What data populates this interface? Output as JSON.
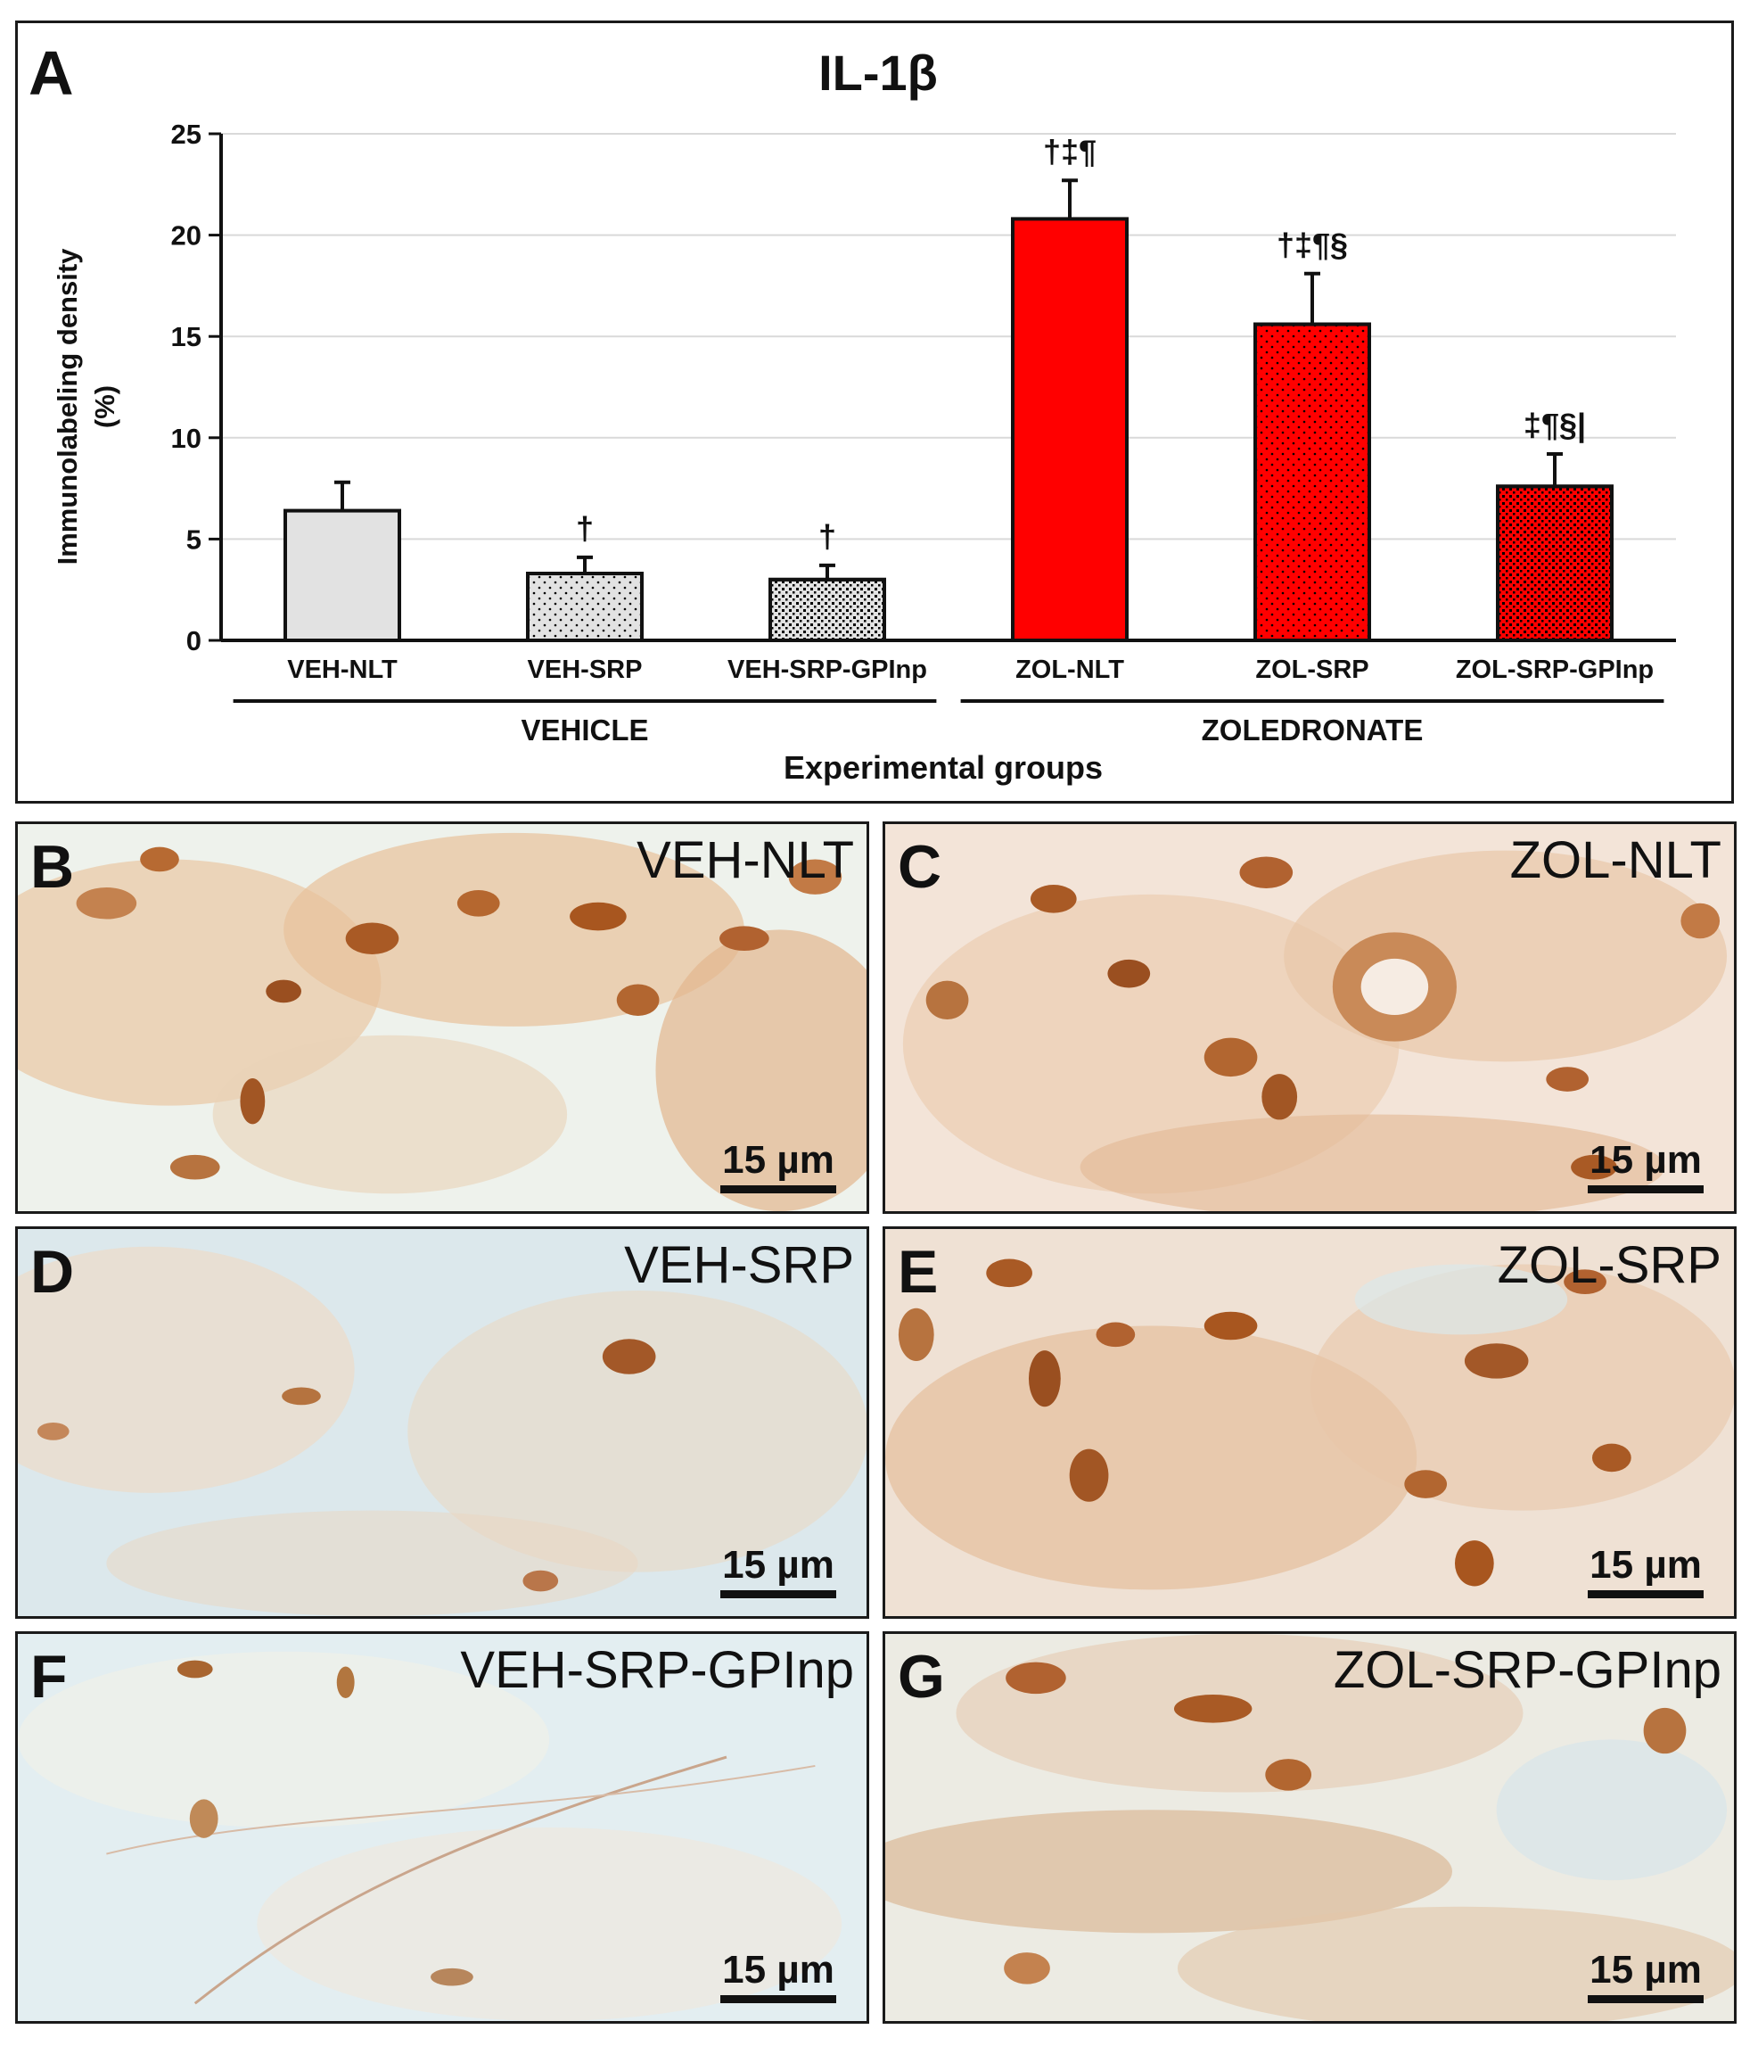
{
  "figure": {
    "panels": [
      {
        "letter": "B",
        "group": "VEH-NLT",
        "scale": "15 µm"
      },
      {
        "letter": "C",
        "group": "ZOL-NLT",
        "scale": "15 µm"
      },
      {
        "letter": "D",
        "group": "VEH-SRP",
        "scale": "15 µm"
      },
      {
        "letter": "E",
        "group": "ZOL-SRP",
        "scale": "15 µm"
      },
      {
        "letter": "F",
        "group": "VEH-SRP-GPInp",
        "scale": "15 µm"
      },
      {
        "letter": "G",
        "group": "ZOL-SRP-GPInp",
        "scale": "15 µm"
      }
    ]
  },
  "chart_data": {
    "type": "bar",
    "panel_letter": "A",
    "title": "IL-1β",
    "ylabel": [
      "Immunolabeling density",
      "(%)"
    ],
    "xlabel": "Experimental groups",
    "ylim": [
      0,
      25
    ],
    "yticks": [
      0,
      5,
      10,
      15,
      20,
      25
    ],
    "grid": true,
    "categories": [
      "VEH-NLT",
      "VEH-SRP",
      "VEH-SRP-GPInp",
      "ZOL-NLT",
      "ZOL-SRP",
      "ZOL-SRP-GPInp"
    ],
    "values": [
      6.4,
      3.3,
      3.0,
      20.8,
      15.6,
      7.6
    ],
    "errors": [
      1.4,
      0.8,
      0.7,
      1.9,
      2.5,
      1.6
    ],
    "annotations": [
      "",
      "†",
      "†",
      "†‡¶",
      "†‡¶§",
      "‡¶§|"
    ],
    "colors": [
      "#e2e2e2",
      "#e2e2e2",
      "#e2e2e2",
      "#ff0000",
      "#ff0000",
      "#ff0000"
    ],
    "patterns": [
      "none",
      "sparse-dots",
      "dense-dots",
      "none",
      "sparse-dots",
      "dense-dots"
    ],
    "groups": [
      {
        "label": "VEHICLE",
        "start": 0,
        "end": 2
      },
      {
        "label": "ZOLEDRONATE",
        "start": 3,
        "end": 5
      }
    ]
  }
}
